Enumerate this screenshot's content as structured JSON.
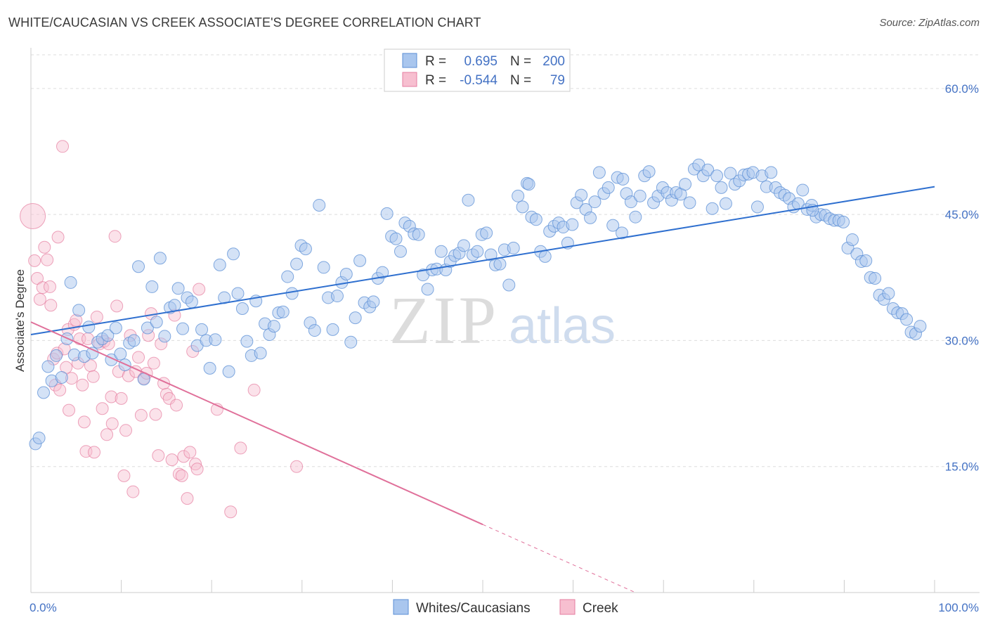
{
  "title": "WHITE/CAUCASIAN VS CREEK ASSOCIATE'S DEGREE CORRELATION CHART",
  "source": "Source: ZipAtlas.com",
  "watermark": {
    "zip": "ZIP",
    "atlas": "atlas"
  },
  "colors": {
    "blue_fill": "#a9c6ee",
    "blue_stroke": "#5b8fd6",
    "blue_line": "#2e6fcf",
    "pink_fill": "#f7bfd0",
    "pink_stroke": "#e67ea0",
    "pink_line": "#e0709a",
    "axis_text": "#4472c4"
  },
  "legend": {
    "rows": [
      {
        "r_label": "R =",
        "r_value": "0.695",
        "n_label": "N =",
        "n_value": "200"
      },
      {
        "r_label": "R =",
        "r_value": "-0.544",
        "n_label": "N =",
        "n_value": "79"
      }
    ]
  },
  "bottom_legend": [
    "Whites/Caucasians",
    "Creek"
  ],
  "chart_data": {
    "type": "scatter",
    "title": "WHITE/CAUCASIAN VS CREEK ASSOCIATE'S DEGREE CORRELATION CHART",
    "xlabel": "",
    "ylabel": "Associate's Degree",
    "xlim": [
      0,
      100
    ],
    "ylim": [
      0,
      64
    ],
    "x_tick_labels": [
      "0.0%",
      "100.0%"
    ],
    "y_ticks": [
      15,
      30,
      45,
      60
    ],
    "y_tick_labels": [
      "15.0%",
      "30.0%",
      "45.0%",
      "60.0%"
    ],
    "grid": "horizontal dashed",
    "legend_position": "top-center",
    "series": [
      {
        "name": "Whites/Caucasians",
        "r": 0.695,
        "n": 200,
        "trend": {
          "x": [
            0,
            100
          ],
          "y": [
            30.7,
            48.3
          ]
        },
        "points": [
          [
            0.5,
            17.7
          ],
          [
            0.9,
            18.4
          ],
          [
            1.4,
            23.8
          ],
          [
            1.9,
            26.9
          ],
          [
            2.3,
            25.2
          ],
          [
            2.8,
            28.2
          ],
          [
            3.4,
            25.6
          ],
          [
            4.0,
            30.2
          ],
          [
            4.4,
            36.9
          ],
          [
            4.8,
            28.3
          ],
          [
            5.3,
            33.6
          ],
          [
            5.9,
            28.1
          ],
          [
            6.4,
            31.6
          ],
          [
            6.8,
            28.5
          ],
          [
            7.4,
            29.8
          ],
          [
            7.9,
            30.2
          ],
          [
            8.5,
            30.6
          ],
          [
            8.9,
            27.7
          ],
          [
            9.4,
            31.5
          ],
          [
            9.9,
            28.4
          ],
          [
            10.4,
            27.1
          ],
          [
            10.9,
            29.7
          ],
          [
            11.4,
            30.0
          ],
          [
            11.9,
            38.8
          ],
          [
            12.5,
            25.4
          ],
          [
            12.9,
            31.5
          ],
          [
            13.4,
            36.4
          ],
          [
            13.9,
            32.2
          ],
          [
            14.3,
            39.8
          ],
          [
            14.8,
            30.5
          ],
          [
            15.4,
            33.9
          ],
          [
            15.9,
            34.2
          ],
          [
            16.3,
            36.2
          ],
          [
            16.8,
            31.4
          ],
          [
            17.3,
            35.1
          ],
          [
            17.8,
            34.6
          ],
          [
            18.4,
            29.4
          ],
          [
            18.9,
            31.3
          ],
          [
            19.4,
            30.0
          ],
          [
            19.8,
            26.7
          ],
          [
            20.4,
            30.1
          ],
          [
            20.9,
            39.0
          ],
          [
            21.4,
            35.1
          ],
          [
            21.9,
            26.3
          ],
          [
            22.4,
            40.3
          ],
          [
            22.9,
            35.6
          ],
          [
            23.4,
            33.8
          ],
          [
            23.9,
            29.9
          ],
          [
            24.4,
            28.2
          ],
          [
            24.9,
            34.7
          ],
          [
            25.4,
            28.5
          ],
          [
            25.9,
            32.0
          ],
          [
            26.4,
            30.7
          ],
          [
            26.9,
            31.7
          ],
          [
            27.4,
            33.3
          ],
          [
            27.9,
            33.4
          ],
          [
            28.4,
            37.6
          ],
          [
            28.9,
            35.6
          ],
          [
            29.4,
            39.1
          ],
          [
            29.9,
            41.3
          ],
          [
            30.4,
            40.9
          ],
          [
            30.9,
            32.1
          ],
          [
            31.4,
            31.2
          ],
          [
            31.9,
            46.1
          ],
          [
            32.4,
            38.7
          ],
          [
            32.9,
            35.1
          ],
          [
            33.4,
            31.3
          ],
          [
            33.9,
            35.3
          ],
          [
            34.4,
            36.9
          ],
          [
            34.9,
            37.9
          ],
          [
            35.4,
            29.8
          ],
          [
            35.9,
            32.7
          ],
          [
            36.4,
            39.5
          ],
          [
            36.9,
            34.5
          ],
          [
            37.5,
            34.0
          ],
          [
            37.9,
            34.6
          ],
          [
            38.4,
            37.4
          ],
          [
            38.9,
            38.1
          ],
          [
            39.4,
            45.1
          ],
          [
            39.9,
            42.4
          ],
          [
            40.4,
            42.1
          ],
          [
            40.9,
            40.6
          ],
          [
            41.4,
            44.0
          ],
          [
            41.9,
            43.6
          ],
          [
            42.4,
            42.7
          ],
          [
            42.9,
            42.6
          ],
          [
            43.4,
            37.8
          ],
          [
            43.9,
            36.1
          ],
          [
            44.4,
            38.4
          ],
          [
            44.9,
            38.5
          ],
          [
            45.4,
            40.6
          ],
          [
            45.9,
            38.4
          ],
          [
            46.4,
            39.4
          ],
          [
            46.9,
            40.1
          ],
          [
            47.4,
            40.4
          ],
          [
            47.9,
            41.3
          ],
          [
            48.4,
            46.7
          ],
          [
            48.9,
            40.2
          ],
          [
            49.4,
            40.6
          ],
          [
            49.9,
            42.6
          ],
          [
            50.4,
            42.8
          ],
          [
            50.9,
            40.2
          ],
          [
            51.4,
            39.0
          ],
          [
            51.9,
            39.1
          ],
          [
            52.4,
            40.8
          ],
          [
            52.9,
            36.6
          ],
          [
            53.4,
            41.0
          ],
          [
            53.9,
            47.2
          ],
          [
            54.4,
            45.9
          ],
          [
            54.9,
            48.7
          ],
          [
            55.4,
            44.7
          ],
          [
            55.9,
            44.4
          ],
          [
            56.4,
            40.6
          ],
          [
            56.9,
            40.0
          ],
          [
            57.4,
            43.0
          ],
          [
            57.9,
            43.6
          ],
          [
            58.4,
            44.0
          ],
          [
            58.9,
            43.5
          ],
          [
            59.4,
            41.6
          ],
          [
            59.9,
            43.8
          ],
          [
            60.4,
            46.4
          ],
          [
            60.9,
            47.3
          ],
          [
            61.4,
            45.6
          ],
          [
            61.9,
            44.6
          ],
          [
            62.4,
            46.5
          ],
          [
            62.9,
            50.0
          ],
          [
            63.4,
            47.5
          ],
          [
            63.9,
            48.2
          ],
          [
            64.4,
            43.7
          ],
          [
            64.9,
            49.4
          ],
          [
            65.4,
            42.8
          ],
          [
            65.9,
            47.5
          ],
          [
            66.4,
            46.5
          ],
          [
            66.9,
            44.7
          ],
          [
            67.4,
            47.2
          ],
          [
            67.9,
            49.6
          ],
          [
            68.4,
            50.1
          ],
          [
            68.9,
            46.4
          ],
          [
            69.4,
            47.2
          ],
          [
            69.9,
            48.2
          ],
          [
            70.4,
            47.6
          ],
          [
            70.9,
            46.7
          ],
          [
            71.4,
            47.6
          ],
          [
            71.9,
            47.4
          ],
          [
            72.4,
            48.6
          ],
          [
            72.9,
            46.4
          ],
          [
            73.4,
            50.4
          ],
          [
            73.9,
            50.9
          ],
          [
            74.4,
            49.6
          ],
          [
            74.9,
            50.3
          ],
          [
            75.4,
            45.7
          ],
          [
            75.9,
            49.6
          ],
          [
            76.4,
            48.2
          ],
          [
            76.9,
            46.3
          ],
          [
            77.4,
            49.9
          ],
          [
            77.9,
            48.6
          ],
          [
            78.4,
            49.0
          ],
          [
            78.9,
            49.7
          ],
          [
            79.4,
            49.8
          ],
          [
            79.9,
            50.0
          ],
          [
            80.4,
            45.9
          ],
          [
            80.9,
            49.6
          ],
          [
            81.4,
            48.3
          ],
          [
            81.9,
            50.0
          ],
          [
            82.4,
            48.2
          ],
          [
            82.9,
            47.6
          ],
          [
            83.4,
            47.3
          ],
          [
            83.9,
            46.9
          ],
          [
            84.4,
            45.9
          ],
          [
            84.9,
            46.3
          ],
          [
            85.4,
            47.9
          ],
          [
            85.9,
            45.6
          ],
          [
            86.4,
            46.1
          ],
          [
            86.9,
            44.7
          ],
          [
            87.4,
            45.0
          ],
          [
            87.9,
            44.9
          ],
          [
            88.4,
            44.5
          ],
          [
            88.9,
            44.3
          ],
          [
            89.4,
            44.3
          ],
          [
            89.9,
            44.1
          ],
          [
            90.4,
            41.0
          ],
          [
            90.9,
            42.0
          ],
          [
            91.4,
            40.3
          ],
          [
            91.9,
            39.4
          ],
          [
            92.4,
            39.5
          ],
          [
            92.9,
            37.5
          ],
          [
            93.4,
            37.4
          ],
          [
            93.9,
            35.4
          ],
          [
            94.4,
            34.9
          ],
          [
            94.9,
            35.6
          ],
          [
            95.4,
            33.8
          ],
          [
            95.9,
            33.3
          ],
          [
            96.4,
            33.2
          ],
          [
            96.9,
            32.5
          ],
          [
            97.4,
            31.0
          ],
          [
            97.9,
            30.8
          ],
          [
            98.4,
            31.7
          ],
          [
            55.1,
            48.6
          ],
          [
            65.5,
            49.2
          ],
          [
            86.5,
            45.5
          ]
        ]
      },
      {
        "name": "Creek",
        "r": -0.544,
        "n": 79,
        "trend": {
          "x": [
            0,
            50
          ],
          "y": [
            32.2,
            8.1
          ]
        },
        "trend_dashed": {
          "x": [
            50,
            66.9
          ],
          "y": [
            8.1,
            0.0
          ]
        },
        "points": [
          [
            0.2,
            44.8
          ],
          [
            0.4,
            39.5
          ],
          [
            0.7,
            37.4
          ],
          [
            1.0,
            34.9
          ],
          [
            1.3,
            36.3
          ],
          [
            1.5,
            41.1
          ],
          [
            1.8,
            39.6
          ],
          [
            2.1,
            36.4
          ],
          [
            2.2,
            34.2
          ],
          [
            2.5,
            27.8
          ],
          [
            2.7,
            24.7
          ],
          [
            2.9,
            28.5
          ],
          [
            3.0,
            42.3
          ],
          [
            3.2,
            24.1
          ],
          [
            3.5,
            53.1
          ],
          [
            3.7,
            29.0
          ],
          [
            3.9,
            26.8
          ],
          [
            4.1,
            31.3
          ],
          [
            4.2,
            21.7
          ],
          [
            4.5,
            25.5
          ],
          [
            4.8,
            31.9
          ],
          [
            5.0,
            32.4
          ],
          [
            5.2,
            27.3
          ],
          [
            5.4,
            30.2
          ],
          [
            5.7,
            24.7
          ],
          [
            5.9,
            20.3
          ],
          [
            6.1,
            16.8
          ],
          [
            6.3,
            30.2
          ],
          [
            6.6,
            27.0
          ],
          [
            6.9,
            25.7
          ],
          [
            7.0,
            16.7
          ],
          [
            7.3,
            32.8
          ],
          [
            7.6,
            29.6
          ],
          [
            7.9,
            21.9
          ],
          [
            8.1,
            29.9
          ],
          [
            8.4,
            18.8
          ],
          [
            8.6,
            29.6
          ],
          [
            8.9,
            23.3
          ],
          [
            9.0,
            20.1
          ],
          [
            9.3,
            42.4
          ],
          [
            9.5,
            34.1
          ],
          [
            9.7,
            26.3
          ],
          [
            10.0,
            23.1
          ],
          [
            10.3,
            13.9
          ],
          [
            10.5,
            19.3
          ],
          [
            10.8,
            25.8
          ],
          [
            11.0,
            30.6
          ],
          [
            11.3,
            12.0
          ],
          [
            11.6,
            26.3
          ],
          [
            11.9,
            28.0
          ],
          [
            12.2,
            21.1
          ],
          [
            12.5,
            25.5
          ],
          [
            12.8,
            26.1
          ],
          [
            13.0,
            30.6
          ],
          [
            13.3,
            33.2
          ],
          [
            13.6,
            27.3
          ],
          [
            13.8,
            21.2
          ],
          [
            14.1,
            16.3
          ],
          [
            14.4,
            29.6
          ],
          [
            14.7,
            24.9
          ],
          [
            15.0,
            23.6
          ],
          [
            15.3,
            23.1
          ],
          [
            15.6,
            15.8
          ],
          [
            15.9,
            33.0
          ],
          [
            16.1,
            22.3
          ],
          [
            16.4,
            14.1
          ],
          [
            16.7,
            13.9
          ],
          [
            16.9,
            16.2
          ],
          [
            17.3,
            11.2
          ],
          [
            17.6,
            16.7
          ],
          [
            17.9,
            28.7
          ],
          [
            18.2,
            15.3
          ],
          [
            18.4,
            14.7
          ],
          [
            18.6,
            36.1
          ],
          [
            20.6,
            21.8
          ],
          [
            22.1,
            9.6
          ],
          [
            23.2,
            17.2
          ],
          [
            24.7,
            24.1
          ],
          [
            29.4,
            15.0
          ]
        ]
      }
    ]
  }
}
